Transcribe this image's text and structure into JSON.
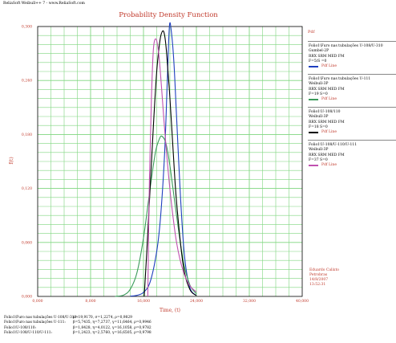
{
  "app_title": "ReliaSoft Weibull++ 7 - www.ReliaSoft.com",
  "colors": {
    "grid_green": "#7fd67f",
    "accent_red": "#c0392b",
    "series1": "#1f3fbf",
    "series2": "#3a9a5a",
    "series3": "#000000",
    "series4": "#c050b0"
  },
  "legend": {
    "header": "Pdf",
    "blocks": [
      {
        "lines": [
          "Folio1\\Furo nas tubulações U-108/U-310",
          "Gumbel-2P",
          "RRX SRM MED FM",
          "F=5/S =0"
        ],
        "line_label": "Pdf Line",
        "color": "#1f3fbf"
      },
      {
        "lines": [
          "Folio1\\Furo nas tubulações U-111",
          "Weibull-3P",
          "RRX SRM MED FM",
          "F=19  S=0"
        ],
        "line_label": "Pdf Line",
        "color": "#3a9a5a"
      },
      {
        "lines": [
          "Folio1\\U-108/110",
          "Weibull-3P",
          "RRX SRM MED FM",
          "F=18  S=0"
        ],
        "line_label": "Pdf Line",
        "color": "#000000"
      },
      {
        "lines": [
          "Folio1\\U-108/U-110/U-111",
          "Weibull-3P",
          "RRX SRM MED FM",
          "F=37  S=0"
        ],
        "line_label": "Pdf Line",
        "color": "#c050b0"
      }
    ]
  },
  "user_info": [
    "Eduardo  Calixto",
    "Petrobras",
    "14/8/2007",
    "13:52:31"
  ],
  "parameters": [
    {
      "label": "Folio1\\Furo nas tubulações U-108/U-310:",
      "value": "μ=19,9170, σ=1,2274, ρ=0,9829"
    },
    {
      "label": "Folio1\\Furo nas tubulações U-111:",
      "value": "β=5,7435, η=7,2737, γ=11,6464, ρ=0,9946"
    },
    {
      "label": "Folio1\\U-108/110:",
      "value": "β=1,8428, η=4,0122, γ=16,1058, ρ=0,9782"
    },
    {
      "label": "Folio1\\U-108/U-110/U-111:",
      "value": "β=1,2423, η=2,5760, γ=16,6505, ρ=0,9798"
    }
  ],
  "chart_data": {
    "type": "line",
    "title": "Probability Density Function",
    "xlabel": "Time, (t)",
    "ylabel": "f(t)",
    "xlim": [
      0,
      40000
    ],
    "ylim": [
      0,
      0.3
    ],
    "x_ticks": [
      0,
      8000,
      16000,
      24000,
      32000,
      40000
    ],
    "x_tick_labels": [
      "0,000",
      "8,000",
      "16,000",
      "24,000",
      "32,000",
      "40,000"
    ],
    "y_ticks": [
      0,
      0.06,
      0.12,
      0.18,
      0.24,
      0.3
    ],
    "y_tick_labels": [
      "0,000",
      "0,060",
      "0,120",
      "0,180",
      "0,240",
      "0,300"
    ],
    "grid": true,
    "series": [
      {
        "name": "Folio1\\Furo nas tubulações U-108/U-310",
        "color": "#1f3fbf",
        "x": [
          14000,
          15000,
          16000,
          17000,
          18000,
          18600,
          19200,
          19600,
          19917,
          20200,
          20600,
          21000,
          21600,
          22200,
          23000,
          24000
        ],
        "y": [
          0.0003,
          0.0012,
          0.0045,
          0.016,
          0.05,
          0.09,
          0.16,
          0.24,
          0.3,
          0.295,
          0.26,
          0.2,
          0.11,
          0.045,
          0.01,
          0.001
        ]
      },
      {
        "name": "Folio1\\Furo nas tubulações U-111",
        "color": "#3a9a5a",
        "x": [
          11700,
          13000,
          14000,
          15000,
          16000,
          17000,
          17800,
          18400,
          18800,
          19400,
          20000,
          21000,
          22000,
          23000,
          24000
        ],
        "y": [
          0.0,
          0.0015,
          0.008,
          0.026,
          0.065,
          0.12,
          0.16,
          0.175,
          0.178,
          0.17,
          0.145,
          0.09,
          0.04,
          0.013,
          0.003
        ]
      },
      {
        "name": "Folio1\\U-108/110",
        "color": "#000000",
        "x": [
          16106,
          16500,
          17000,
          17500,
          18000,
          18500,
          18900,
          19200,
          19500,
          20000,
          20500,
          21000,
          22000,
          23000,
          24000
        ],
        "y": [
          0.0,
          0.05,
          0.12,
          0.19,
          0.25,
          0.285,
          0.295,
          0.29,
          0.27,
          0.22,
          0.16,
          0.105,
          0.035,
          0.008,
          0.001
        ]
      },
      {
        "name": "Folio1\\U-108/U-110/U-111",
        "color": "#c050b0",
        "x": [
          16651,
          16900,
          17200,
          17500,
          17900,
          18300,
          18700,
          19100,
          19600,
          20200,
          21000,
          22000,
          23000,
          24000
        ],
        "y": [
          0.0,
          0.13,
          0.22,
          0.275,
          0.286,
          0.27,
          0.235,
          0.195,
          0.15,
          0.105,
          0.06,
          0.028,
          0.012,
          0.005
        ]
      }
    ]
  }
}
